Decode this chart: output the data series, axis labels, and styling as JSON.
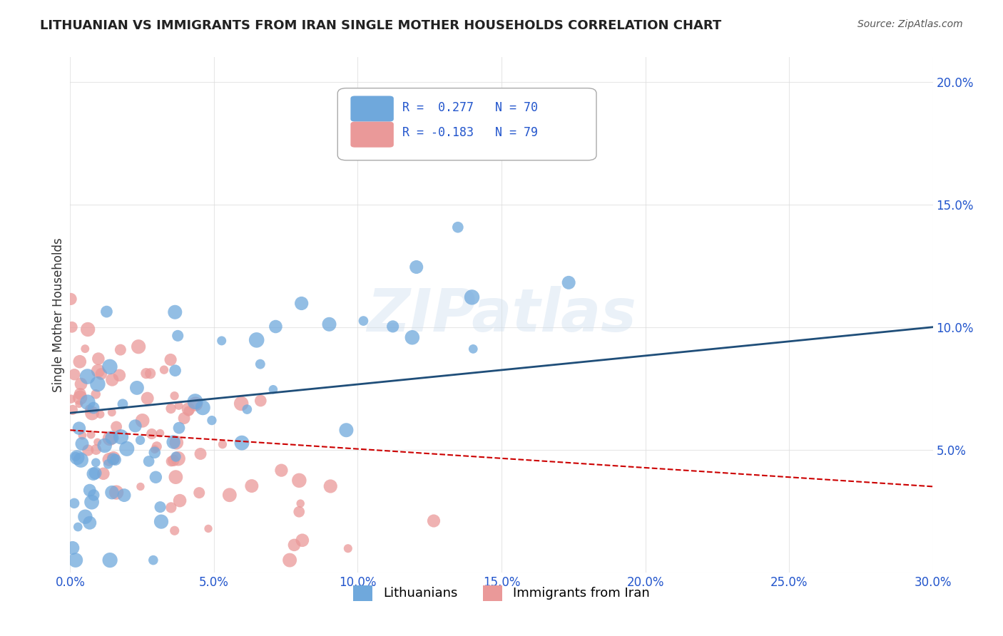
{
  "title": "LITHUANIAN VS IMMIGRANTS FROM IRAN SINGLE MOTHER HOUSEHOLDS CORRELATION CHART",
  "source": "Source: ZipAtlas.com",
  "xlabel": "",
  "ylabel": "Single Mother Households",
  "xlim": [
    0.0,
    0.3
  ],
  "ylim": [
    0.0,
    0.21
  ],
  "xticks": [
    0.0,
    0.05,
    0.1,
    0.15,
    0.2,
    0.25,
    0.3
  ],
  "yticks": [
    0.0,
    0.05,
    0.1,
    0.15,
    0.2
  ],
  "xticklabels": [
    "0.0%",
    "5.0%",
    "10.0%",
    "15.0%",
    "20.0%",
    "25.0%",
    "30.0%"
  ],
  "yticklabels": [
    "",
    "5.0%",
    "10.0%",
    "15.0%",
    "20.0%"
  ],
  "legend1_label": "R =  0.277   N = 70",
  "legend2_label": "R = -0.183   N = 79",
  "legend1_R": 0.277,
  "legend1_N": 70,
  "legend2_R": -0.183,
  "legend2_N": 79,
  "color_lith": "#6fa8dc",
  "color_iran": "#ea9999",
  "color_lith_line": "#1f4e79",
  "color_iran_line": "#cc0000",
  "watermark": "ZIPatlas",
  "legend_labels_bottom": [
    "Lithuanians",
    "Immigrants from Iran"
  ],
  "background_color": "#ffffff",
  "grid_color": "#dddddd"
}
